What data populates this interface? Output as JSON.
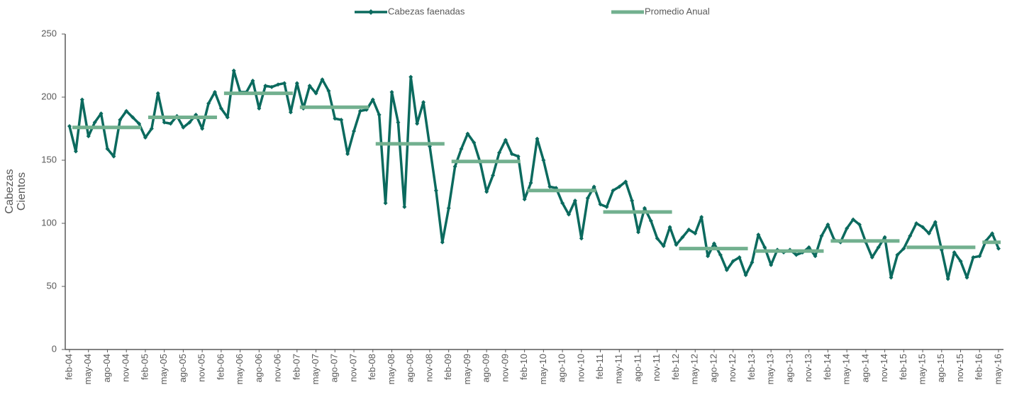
{
  "chart_data": {
    "type": "line",
    "y_label": [
      "Cabezas",
      "Cientos"
    ],
    "categories": [
      "feb-04",
      null,
      null,
      "may-04",
      null,
      null,
      "ago-04",
      null,
      null,
      "nov-04",
      null,
      null,
      "feb-05",
      null,
      null,
      "may-05",
      null,
      null,
      "ago-05",
      null,
      null,
      "nov-05",
      null,
      null,
      "feb-06",
      null,
      null,
      "may-06",
      null,
      null,
      "ago-06",
      null,
      null,
      "nov-06",
      null,
      null,
      "feb-07",
      null,
      null,
      "may-07",
      null,
      null,
      "ago-07",
      null,
      null,
      "nov-07",
      null,
      null,
      "feb-08",
      null,
      null,
      "may-08",
      null,
      null,
      "ago-08",
      null,
      null,
      "nov-08",
      null,
      null,
      "feb-09",
      null,
      null,
      "may-09",
      null,
      null,
      "ago-09",
      null,
      null,
      "nov-09",
      null,
      null,
      "feb-10",
      null,
      null,
      "may-10",
      null,
      null,
      "ago-10",
      null,
      null,
      "nov-10",
      null,
      null,
      "feb-11",
      null,
      null,
      "may-11",
      null,
      null,
      "ago-11",
      null,
      null,
      "nov-11",
      null,
      null,
      "feb-12",
      null,
      null,
      "may-12",
      null,
      null,
      "ago-12",
      null,
      null,
      "nov-12",
      null,
      null,
      "feb-13",
      null,
      null,
      "may-13",
      null,
      null,
      "ago-13",
      null,
      null,
      "nov-13",
      null,
      null,
      "feb-14",
      null,
      null,
      "may-14",
      null,
      null,
      "ago-14",
      null,
      null,
      "nov-14",
      null,
      null,
      "feb-15",
      null,
      null,
      "may-15",
      null,
      null,
      "ago-15",
      null,
      null,
      "nov-15",
      null,
      null,
      "feb-16",
      null,
      null,
      "may-16"
    ],
    "series": [
      {
        "name": "Cabezas faenadas",
        "color": "#0b6a5e",
        "marker": "diamond",
        "values": [
          177,
          157,
          198,
          169,
          180,
          187,
          159,
          153,
          182,
          189,
          184,
          179,
          168,
          175,
          203,
          180,
          179,
          185,
          176,
          180,
          186,
          175,
          195,
          204,
          191,
          184,
          221,
          204,
          204,
          213,
          191,
          209,
          208,
          210,
          211,
          188,
          211,
          191,
          209,
          203,
          214,
          205,
          183,
          182,
          155,
          173,
          189,
          190,
          198,
          186,
          116,
          204,
          180,
          113,
          216,
          179,
          196,
          161,
          126,
          85,
          112,
          145,
          159,
          171,
          164,
          148,
          125,
          138,
          156,
          166,
          155,
          153,
          119,
          132,
          167,
          150,
          129,
          128,
          116,
          107,
          118,
          88,
          120,
          129,
          115,
          113,
          126,
          129,
          133,
          118,
          93,
          112,
          102,
          88,
          82,
          97,
          83,
          89,
          95,
          92,
          105,
          74,
          84,
          75,
          63,
          70,
          73,
          59,
          69,
          91,
          81,
          67,
          79,
          77,
          79,
          75,
          77,
          81,
          74,
          90,
          99,
          87,
          85,
          96,
          103,
          99,
          85,
          73,
          81,
          89,
          57,
          75,
          80,
          90,
          100,
          97,
          92,
          101,
          79,
          56,
          77,
          70,
          57,
          73,
          74,
          86,
          92,
          80
        ]
      },
      {
        "name": "Promedio Anual",
        "color": "#72b08f",
        "marker": "none",
        "values": [
          176,
          176,
          176,
          176,
          176,
          176,
          176,
          176,
          176,
          176,
          176,
          176,
          184,
          184,
          184,
          184,
          184,
          184,
          184,
          184,
          184,
          184,
          184,
          184,
          203,
          203,
          203,
          203,
          203,
          203,
          203,
          203,
          203,
          203,
          203,
          203,
          192,
          192,
          192,
          192,
          192,
          192,
          192,
          192,
          192,
          192,
          192,
          192,
          163,
          163,
          163,
          163,
          163,
          163,
          163,
          163,
          163,
          163,
          163,
          163,
          149,
          149,
          149,
          149,
          149,
          149,
          149,
          149,
          149,
          149,
          149,
          149,
          126,
          126,
          126,
          126,
          126,
          126,
          126,
          126,
          126,
          126,
          126,
          126,
          109,
          109,
          109,
          109,
          109,
          109,
          109,
          109,
          109,
          109,
          109,
          109,
          80,
          80,
          80,
          80,
          80,
          80,
          80,
          80,
          80,
          80,
          80,
          80,
          78,
          78,
          78,
          78,
          78,
          78,
          78,
          78,
          78,
          78,
          78,
          78,
          86,
          86,
          86,
          86,
          86,
          86,
          86,
          86,
          86,
          86,
          86,
          86,
          81,
          81,
          81,
          81,
          81,
          81,
          81,
          81,
          81,
          81,
          81,
          81,
          85,
          85,
          85,
          85
        ]
      }
    ],
    "ylim": [
      0,
      250
    ],
    "yticks": [
      0,
      50,
      100,
      150,
      200,
      250
    ],
    "grid": false,
    "legend": "top"
  }
}
